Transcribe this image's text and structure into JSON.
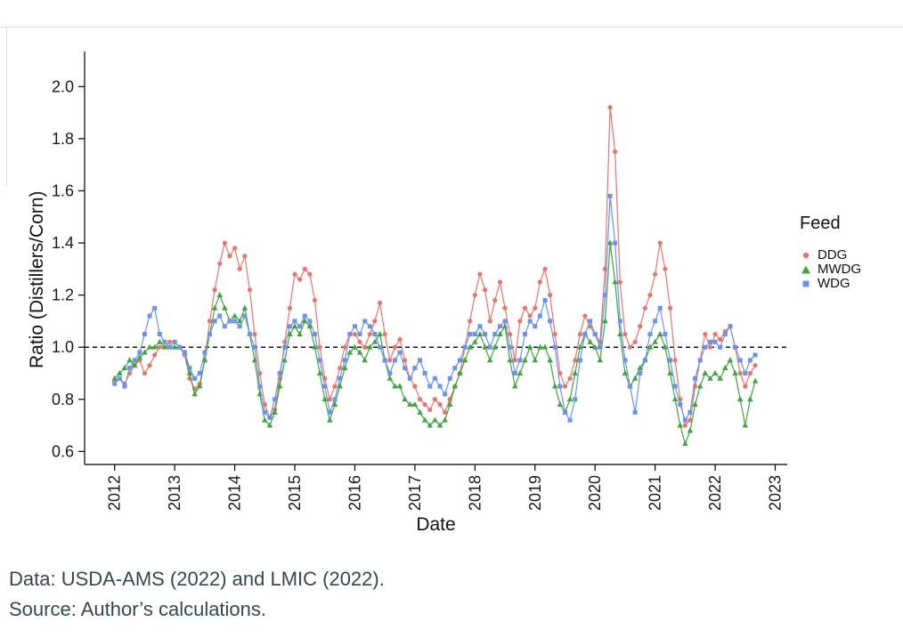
{
  "figure": {
    "captions": {
      "data_line": "Data: USDA-AMS (2022) and LMIC (2022).",
      "source_line": "Source: Author’s calculations."
    },
    "caption_color": "#37474f"
  },
  "chart_data": {
    "type": "line",
    "title": "",
    "xlabel": "Date",
    "ylabel": "Ratio (Distillers/Corn)",
    "xlim": [
      2011.5,
      2023.2
    ],
    "ylim": [
      0.55,
      2.1
    ],
    "x_ticks": [
      2012,
      2013,
      2014,
      2015,
      2016,
      2017,
      2018,
      2019,
      2020,
      2021,
      2022,
      2023
    ],
    "y_ticks": [
      0.6,
      0.8,
      1.0,
      1.2,
      1.4,
      1.6,
      1.8,
      2.0
    ],
    "grid": false,
    "background": "#ffffff",
    "reference_line": {
      "y": 1.0,
      "style": "dashed",
      "color": "#000000"
    },
    "legend": {
      "title": "Feed",
      "position": "right"
    },
    "x_unit": "decimal year (high-frequency series approximated at monthly resolution)",
    "x": [
      2012.0,
      2012.083,
      2012.167,
      2012.25,
      2012.333,
      2012.417,
      2012.5,
      2012.583,
      2012.667,
      2012.75,
      2012.833,
      2012.917,
      2013.0,
      2013.083,
      2013.167,
      2013.25,
      2013.333,
      2013.417,
      2013.5,
      2013.583,
      2013.667,
      2013.75,
      2013.833,
      2013.917,
      2014.0,
      2014.083,
      2014.167,
      2014.25,
      2014.333,
      2014.417,
      2014.5,
      2014.583,
      2014.667,
      2014.75,
      2014.833,
      2014.917,
      2015.0,
      2015.083,
      2015.167,
      2015.25,
      2015.333,
      2015.417,
      2015.5,
      2015.583,
      2015.667,
      2015.75,
      2015.833,
      2015.917,
      2016.0,
      2016.083,
      2016.167,
      2016.25,
      2016.333,
      2016.417,
      2016.5,
      2016.583,
      2016.667,
      2016.75,
      2016.833,
      2016.917,
      2017.0,
      2017.083,
      2017.167,
      2017.25,
      2017.333,
      2017.417,
      2017.5,
      2017.583,
      2017.667,
      2017.75,
      2017.833,
      2017.917,
      2018.0,
      2018.083,
      2018.167,
      2018.25,
      2018.333,
      2018.417,
      2018.5,
      2018.583,
      2018.667,
      2018.75,
      2018.833,
      2018.917,
      2019.0,
      2019.083,
      2019.167,
      2019.25,
      2019.333,
      2019.417,
      2019.5,
      2019.583,
      2019.667,
      2019.75,
      2019.833,
      2019.917,
      2020.0,
      2020.083,
      2020.167,
      2020.25,
      2020.333,
      2020.417,
      2020.5,
      2020.583,
      2020.667,
      2020.75,
      2020.833,
      2020.917,
      2021.0,
      2021.083,
      2021.167,
      2021.25,
      2021.333,
      2021.417,
      2021.5,
      2021.583,
      2021.667,
      2021.75,
      2021.833,
      2021.917,
      2022.0,
      2022.083,
      2022.167,
      2022.25,
      2022.333,
      2022.417,
      2022.5,
      2022.583,
      2022.667
    ],
    "series": [
      {
        "name": "DDG",
        "color": "#e8756c",
        "marker": "circle",
        "values": [
          0.87,
          0.88,
          0.86,
          0.9,
          0.93,
          0.95,
          0.9,
          0.93,
          0.97,
          1.0,
          1.0,
          1.02,
          1.02,
          1.0,
          0.97,
          0.88,
          0.84,
          0.86,
          0.95,
          1.1,
          1.22,
          1.32,
          1.4,
          1.35,
          1.38,
          1.3,
          1.35,
          1.22,
          1.05,
          0.9,
          0.78,
          0.73,
          0.76,
          0.88,
          1.02,
          1.15,
          1.28,
          1.26,
          1.3,
          1.28,
          1.18,
          1.0,
          0.88,
          0.8,
          0.85,
          0.92,
          1.0,
          1.05,
          1.05,
          1.02,
          1.0,
          1.05,
          1.1,
          1.17,
          1.05,
          0.95,
          1.0,
          1.03,
          0.95,
          0.88,
          0.85,
          0.8,
          0.78,
          0.76,
          0.8,
          0.78,
          0.75,
          0.8,
          0.85,
          0.9,
          1.0,
          1.1,
          1.2,
          1.28,
          1.22,
          1.1,
          1.18,
          1.25,
          1.15,
          1.05,
          0.95,
          1.1,
          1.15,
          1.12,
          1.15,
          1.25,
          1.3,
          1.2,
          1.05,
          0.9,
          0.85,
          0.88,
          0.95,
          1.05,
          1.12,
          1.08,
          1.05,
          1.02,
          1.3,
          1.92,
          1.75,
          1.25,
          1.05,
          1.0,
          1.02,
          1.08,
          1.15,
          1.2,
          1.28,
          1.4,
          1.3,
          1.15,
          0.95,
          0.8,
          0.7,
          0.72,
          0.85,
          0.95,
          1.05,
          1.0,
          1.05,
          1.03,
          1.06,
          1.08,
          1.0,
          0.9,
          0.85,
          0.9,
          0.93
        ]
      },
      {
        "name": "MWDG",
        "color": "#3fa53f",
        "marker": "triangle",
        "values": [
          0.88,
          0.9,
          0.92,
          0.95,
          0.93,
          0.96,
          0.98,
          1.0,
          1.0,
          1.02,
          1.0,
          1.0,
          1.0,
          1.0,
          0.98,
          0.9,
          0.82,
          0.85,
          0.95,
          1.05,
          1.15,
          1.2,
          1.15,
          1.1,
          1.12,
          1.1,
          1.15,
          1.05,
          0.95,
          0.82,
          0.72,
          0.7,
          0.75,
          0.85,
          0.95,
          1.05,
          1.08,
          1.05,
          1.1,
          1.08,
          1.0,
          0.9,
          0.8,
          0.72,
          0.78,
          0.85,
          0.92,
          0.98,
          1.0,
          0.98,
          0.95,
          1.0,
          1.02,
          1.05,
          0.95,
          0.88,
          0.85,
          0.85,
          0.8,
          0.78,
          0.78,
          0.75,
          0.72,
          0.7,
          0.72,
          0.7,
          0.72,
          0.78,
          0.85,
          0.9,
          0.95,
          1.0,
          1.02,
          1.05,
          1.0,
          0.95,
          1.0,
          1.05,
          1.08,
          0.95,
          0.85,
          0.9,
          0.95,
          1.0,
          0.95,
          1.0,
          1.0,
          0.95,
          0.85,
          0.78,
          0.75,
          0.8,
          0.9,
          1.0,
          1.05,
          1.02,
          1.0,
          0.95,
          1.1,
          1.4,
          1.25,
          1.05,
          0.9,
          0.85,
          0.88,
          0.92,
          0.95,
          1.0,
          1.02,
          1.05,
          1.0,
          0.9,
          0.8,
          0.7,
          0.63,
          0.68,
          0.78,
          0.85,
          0.9,
          0.88,
          0.9,
          0.88,
          0.92,
          0.95,
          0.9,
          0.8,
          0.7,
          0.8,
          0.87
        ]
      },
      {
        "name": "WDG",
        "color": "#6c93e8",
        "marker": "square",
        "values": [
          0.86,
          0.88,
          0.85,
          0.92,
          0.95,
          0.98,
          1.05,
          1.12,
          1.15,
          1.05,
          1.02,
          1.0,
          1.02,
          1.0,
          0.98,
          0.92,
          0.88,
          0.9,
          0.98,
          1.05,
          1.1,
          1.12,
          1.08,
          1.1,
          1.1,
          1.08,
          1.12,
          1.05,
          1.0,
          0.85,
          0.75,
          0.73,
          0.8,
          0.9,
          1.0,
          1.08,
          1.1,
          1.08,
          1.12,
          1.1,
          1.05,
          0.95,
          0.85,
          0.75,
          0.8,
          0.88,
          0.95,
          1.05,
          1.08,
          1.05,
          1.1,
          1.08,
          1.05,
          1.0,
          0.95,
          0.9,
          0.95,
          0.98,
          0.92,
          0.88,
          0.92,
          0.95,
          0.9,
          0.85,
          0.88,
          0.85,
          0.82,
          0.88,
          0.92,
          0.95,
          1.0,
          1.05,
          1.05,
          1.08,
          1.05,
          1.0,
          1.05,
          1.08,
          1.1,
          1.0,
          0.9,
          0.95,
          1.05,
          1.1,
          1.08,
          1.12,
          1.18,
          1.1,
          1.0,
          0.85,
          0.75,
          0.72,
          0.8,
          0.95,
          1.05,
          1.1,
          1.05,
          1.0,
          1.2,
          1.58,
          1.4,
          1.1,
          0.95,
          0.85,
          0.75,
          0.9,
          0.95,
          1.05,
          1.1,
          1.15,
          1.05,
          0.95,
          0.85,
          0.78,
          0.72,
          0.75,
          0.88,
          0.95,
          1.0,
          1.02,
          1.02,
          1.0,
          1.05,
          1.08,
          1.0,
          0.95,
          0.9,
          0.95,
          0.97
        ]
      }
    ]
  }
}
